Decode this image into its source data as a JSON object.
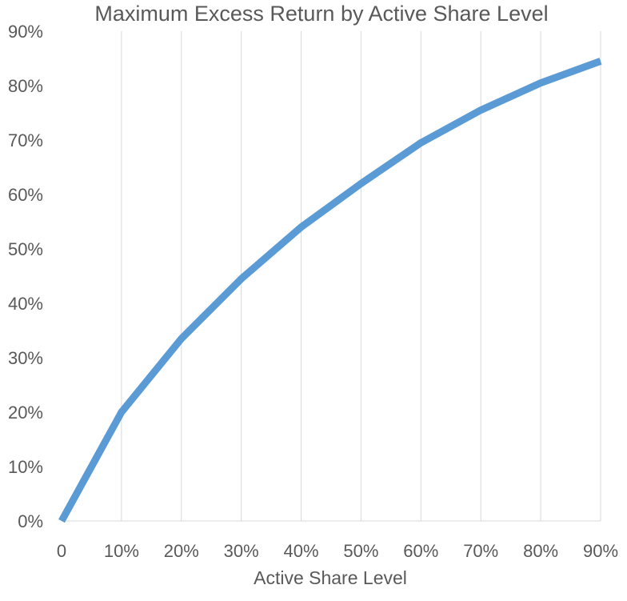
{
  "chart_data": {
    "type": "line",
    "title": "Maximum Excess Return by Active Share Level",
    "xlabel": "Active Share Level",
    "ylabel": "",
    "categories": [
      "0",
      "10%",
      "20%",
      "30%",
      "40%",
      "50%",
      "60%",
      "70%",
      "80%",
      "90%"
    ],
    "y_ticks": [
      "0%",
      "10%",
      "20%",
      "30%",
      "40%",
      "50%",
      "60%",
      "70%",
      "80%",
      "90%"
    ],
    "ylim": [
      0,
      90
    ],
    "series": [
      {
        "values": [
          0,
          20,
          33.5,
          44.5,
          54,
          62,
          69.5,
          75.5,
          80.5,
          84.5
        ],
        "color": "#5b9bd5"
      }
    ],
    "grid": "vertical",
    "legend": "none"
  }
}
